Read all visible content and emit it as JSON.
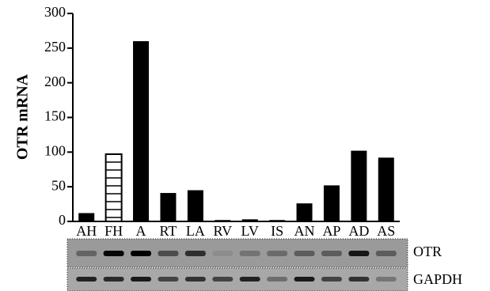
{
  "chart_data": {
    "type": "bar",
    "ylabel": "OTR mRNA",
    "categories": [
      "AH",
      "FH",
      "A",
      "RT",
      "LA",
      "RV",
      "LV",
      "IS",
      "AN",
      "AP",
      "AD",
      "AS"
    ],
    "values": [
      12,
      97,
      260,
      41,
      45,
      2,
      3,
      2,
      26,
      52,
      102,
      92
    ],
    "color": "#000000",
    "hatched_categories": [
      "FH"
    ],
    "ylim": [
      0,
      300
    ],
    "yticks": [
      0,
      50,
      100,
      150,
      200,
      250,
      300
    ],
    "grid": false,
    "gel_labels": [
      "OTR",
      "GAPDH"
    ]
  }
}
